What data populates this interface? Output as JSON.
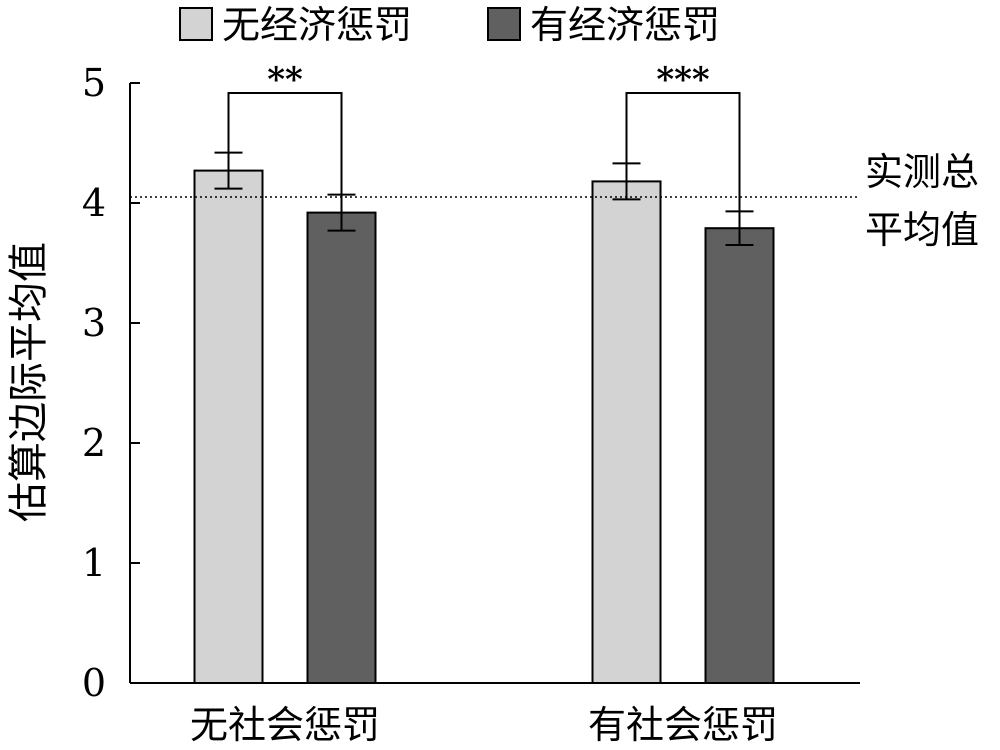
{
  "chart_data": {
    "type": "bar",
    "ylabel": "估算边际平均值",
    "ylim": [
      0,
      5
    ],
    "yticks": [
      0,
      1,
      2,
      3,
      4,
      5
    ],
    "categories": [
      "无社会惩罚",
      "有社会惩罚"
    ],
    "series": [
      {
        "name": "无经济惩罚",
        "color": "#d3d3d3",
        "values": [
          4.27,
          4.18
        ],
        "error": [
          0.15,
          0.15
        ]
      },
      {
        "name": "有经济惩罚",
        "color": "#606060",
        "values": [
          3.92,
          3.79
        ],
        "error": [
          0.15,
          0.14
        ]
      }
    ],
    "reference_line": {
      "value": 4.05,
      "label_lines": [
        "实测总",
        "平均值"
      ],
      "style": "dotted"
    },
    "significance": [
      "**",
      "***"
    ],
    "legend": {
      "position": "top"
    },
    "grid": false
  }
}
